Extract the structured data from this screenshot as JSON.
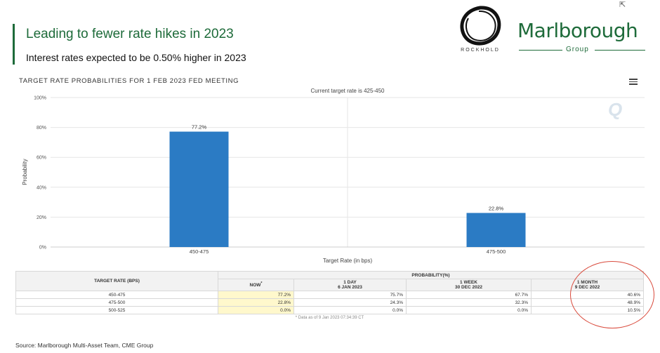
{
  "slide": {
    "headline": "Leading to fewer rate hikes in 2023",
    "subheadline": "Interest rates expected to be 0.50% higher in 2023",
    "source": "Source: Marlborough Multi-Asset Team, CME Group",
    "accent_color": "#1e6b3a"
  },
  "logos": {
    "rockhold": "ROCKHOLD",
    "marlborough_name": "Marlborough",
    "marlborough_group": "Group"
  },
  "panel": {
    "title": "TARGET RATE PROBABILITIES FOR 1 FEB 2023 FED MEETING",
    "watermark": "Q"
  },
  "chart_data": {
    "type": "bar",
    "subtitle": "Current target rate is 425-450",
    "categories": [
      "450-475",
      "475-500"
    ],
    "values": [
      77.2,
      22.8
    ],
    "data_labels": [
      "77.2%",
      "22.8%"
    ],
    "xlabel": "Target Rate (in bps)",
    "ylabel": "Probability",
    "ylim": [
      0,
      100
    ],
    "yticks": [
      "0%",
      "20%",
      "40%",
      "60%",
      "80%",
      "100%"
    ],
    "bar_color": "#2b7bc4",
    "grid": true
  },
  "table": {
    "target_header": "TARGET RATE (BPS)",
    "prob_header": "PROBABILITY(%)",
    "col_now": "NOW",
    "col_now_mark": "*",
    "col_1day": "1 DAY",
    "col_1day_date": "6 JAN 2023",
    "col_1week": "1 WEEK",
    "col_1week_date": "30 DEC 2022",
    "col_1month": "1 MONTH",
    "col_1month_date": "9 DEC 2022",
    "rows": [
      {
        "rate": "450-475",
        "now": "77.2%",
        "day": "75.7%",
        "week": "67.7%",
        "month": "40.6%"
      },
      {
        "rate": "475-500",
        "now": "22.8%",
        "day": "24.3%",
        "week": "32.3%",
        "month": "48.9%"
      },
      {
        "rate": "500-525",
        "now": "0.0%",
        "day": "0.0%",
        "week": "0.0%",
        "month": "10.5%"
      }
    ],
    "as_of": "* Data as of 9 Jan 2023 07:34:39 CT"
  }
}
